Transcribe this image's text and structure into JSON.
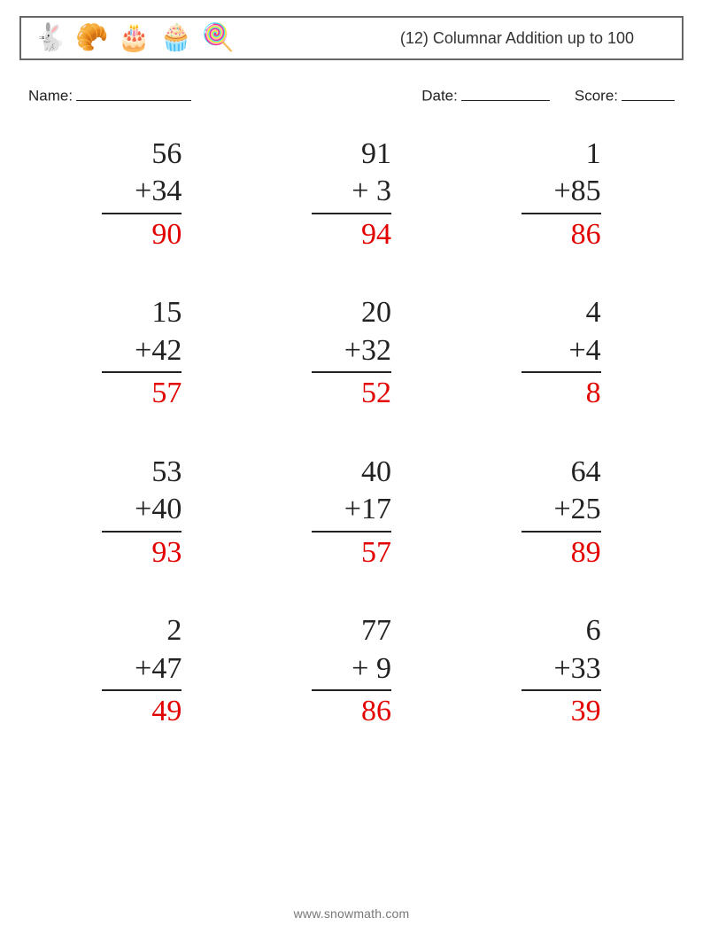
{
  "header": {
    "icons": [
      "🐇",
      "🥐",
      "🎂",
      "🧁",
      "🍭"
    ],
    "title": "(12) Columnar Addition up to 100"
  },
  "meta": {
    "name_label": "Name:",
    "date_label": "Date:",
    "score_label": "Score:"
  },
  "style": {
    "answer_color": "#e20000",
    "font_size_problem": 34,
    "text_color": "#222222",
    "background_color": "#ffffff",
    "border_color": "#666666"
  },
  "problems": [
    {
      "a": "56",
      "op": "+",
      "b": "34",
      "ans": "90"
    },
    {
      "a": "91",
      "op": "+",
      "b": " 3",
      "ans": "94"
    },
    {
      "a": " 1",
      "op": "+",
      "b": "85",
      "ans": "86"
    },
    {
      "a": "15",
      "op": "+",
      "b": "42",
      "ans": "57"
    },
    {
      "a": "20",
      "op": "+",
      "b": "32",
      "ans": "52"
    },
    {
      "a": "4",
      "op": "+",
      "b": "4",
      "ans": "8"
    },
    {
      "a": "53",
      "op": "+",
      "b": "40",
      "ans": "93"
    },
    {
      "a": "40",
      "op": "+",
      "b": "17",
      "ans": "57"
    },
    {
      "a": "64",
      "op": "+",
      "b": "25",
      "ans": "89"
    },
    {
      "a": " 2",
      "op": "+",
      "b": "47",
      "ans": "49"
    },
    {
      "a": "77",
      "op": "+",
      "b": " 9",
      "ans": "86"
    },
    {
      "a": " 6",
      "op": "+",
      "b": "33",
      "ans": "39"
    }
  ],
  "footer": {
    "text": "www.snowmath.com"
  }
}
